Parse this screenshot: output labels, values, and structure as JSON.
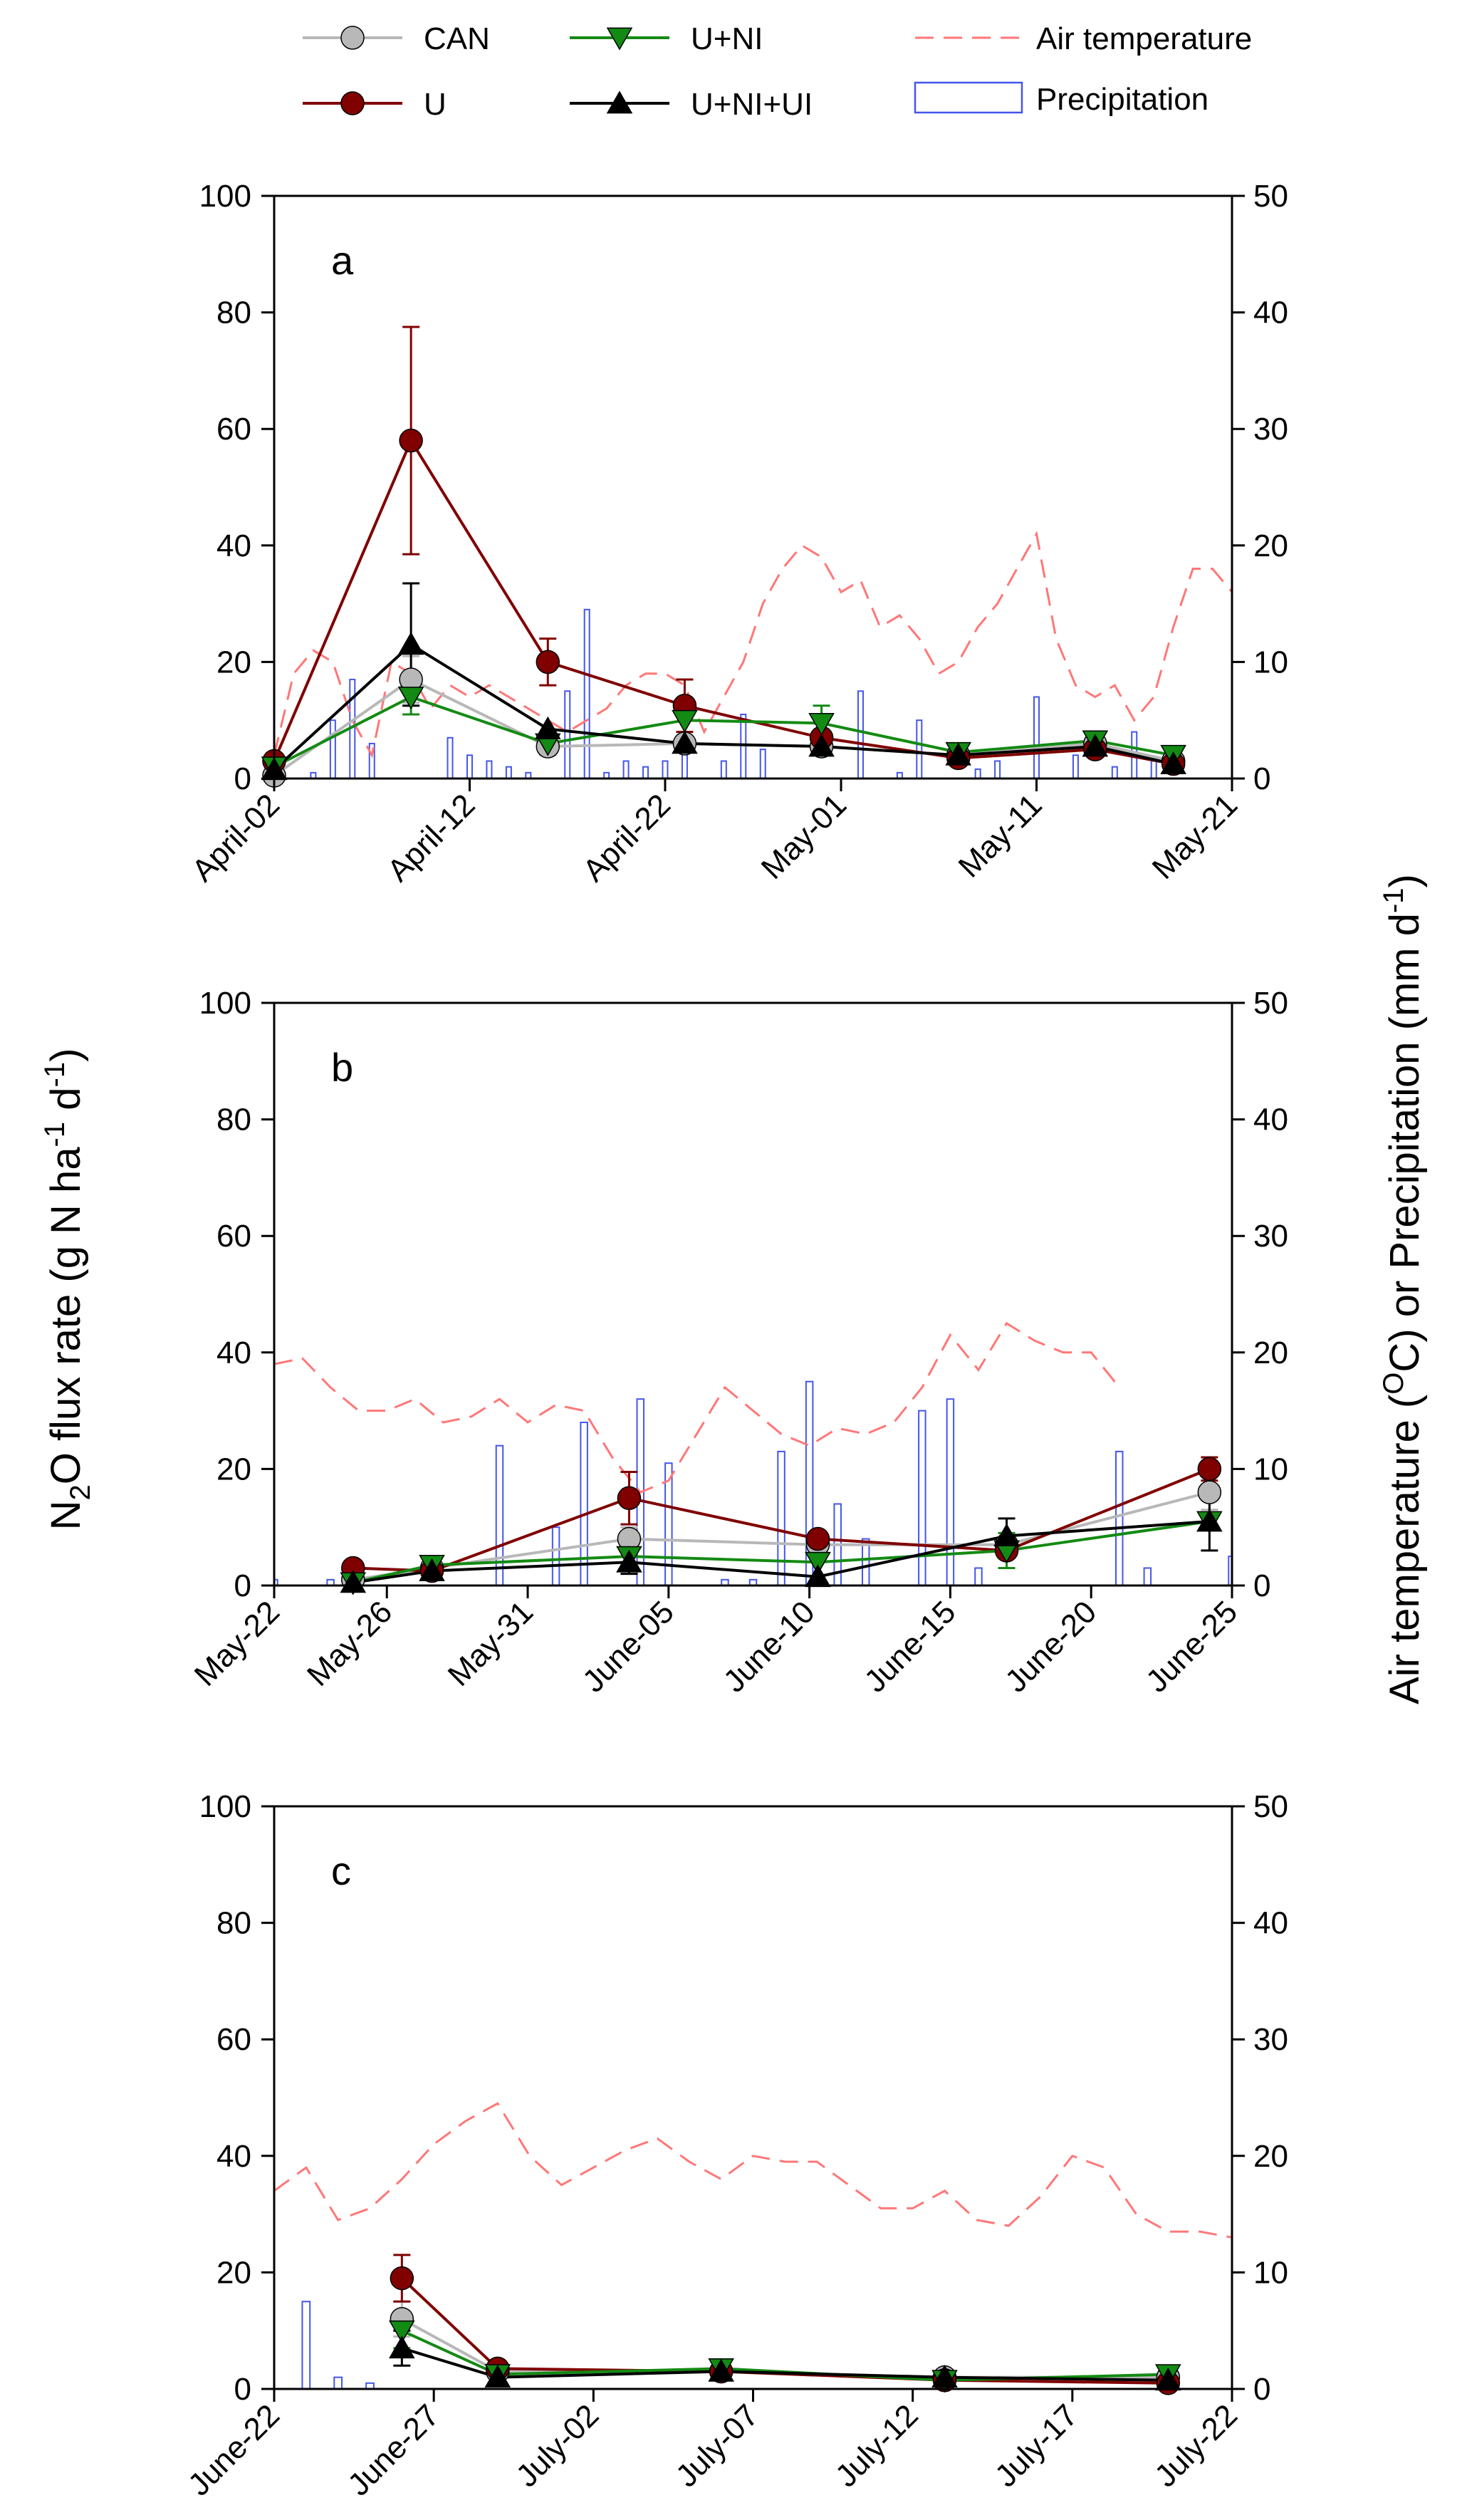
{
  "ylabel_left": {
    "pre": "N",
    "sub1": "2",
    "mid": "O flux rate (g N ha",
    "sup1": "-1",
    "mid2": " d",
    "sup2": "-1",
    "post": ")"
  },
  "ylabel_right": {
    "pre": "Air temperature (",
    "sup1": "O",
    "mid": "C) or Precipitation (mm d",
    "sup2": "-1",
    "post": ")"
  },
  "legend": [
    {
      "key": "CAN",
      "label": "CAN",
      "kind": "line-marker",
      "color": "#b8b8b8",
      "marker": "circle"
    },
    {
      "key": "U",
      "label": "U",
      "kind": "line-marker",
      "color": "#800000",
      "marker": "circle"
    },
    {
      "key": "UNI",
      "label": "U+NI",
      "kind": "line-marker",
      "color": "#138a13",
      "marker": "triangle-down"
    },
    {
      "key": "UNIUI",
      "label": "U+NI+UI",
      "kind": "line-marker",
      "color": "#000000",
      "marker": "triangle-up"
    },
    {
      "key": "air",
      "label": "Air temperature",
      "kind": "dashed",
      "color": "#ff7777"
    },
    {
      "key": "precip",
      "label": "Precipitation",
      "kind": "box",
      "color": "#4455ee"
    }
  ],
  "chart_data": [
    {
      "type": "line",
      "panel": "a",
      "x_range": [
        0,
        49
      ],
      "x_ticks": [
        {
          "x": 0,
          "label": "April-02"
        },
        {
          "x": 10,
          "label": "April-12"
        },
        {
          "x": 20,
          "label": "April-22"
        },
        {
          "x": 29,
          "label": "May-01"
        },
        {
          "x": 39,
          "label": "May-11"
        },
        {
          "x": 49,
          "label": "May-21"
        }
      ],
      "y_left": {
        "min": 0,
        "max": 100,
        "ticks": [
          0,
          20,
          40,
          60,
          80,
          100
        ]
      },
      "y_right": {
        "min": 0,
        "max": 50,
        "ticks": [
          0,
          10,
          20,
          30,
          40,
          50
        ]
      },
      "series": [
        {
          "key": "CAN",
          "x": [
            0,
            7,
            14,
            21,
            28,
            35,
            42,
            46
          ],
          "y": [
            0.5,
            17,
            5.5,
            6,
            5.5,
            4,
            6,
            3
          ],
          "err": [
            0,
            4,
            1.5,
            0,
            0,
            0,
            0,
            0
          ]
        },
        {
          "key": "U",
          "x": [
            0,
            7,
            14,
            21,
            28,
            35,
            42,
            46
          ],
          "y": [
            3,
            58,
            20,
            12.5,
            7,
            3.5,
            5,
            2.5
          ],
          "err": [
            1,
            19.5,
            4,
            4.5,
            0,
            0,
            0,
            0
          ]
        },
        {
          "key": "UNI",
          "x": [
            0,
            7,
            14,
            21,
            28,
            35,
            42,
            46
          ],
          "y": [
            2,
            14,
            6,
            10,
            9.5,
            4.5,
            6.5,
            4
          ],
          "err": [
            0,
            3,
            0,
            0,
            3,
            0,
            0,
            0
          ]
        },
        {
          "key": "UNIUI",
          "x": [
            0,
            7,
            14,
            21,
            28,
            35,
            42,
            46
          ],
          "y": [
            1.5,
            23,
            8.5,
            6,
            5.5,
            4,
            5.5,
            2.5
          ],
          "err": [
            0,
            10.5,
            0,
            0,
            0,
            0,
            0,
            0
          ]
        }
      ],
      "air_temperature": {
        "x": [
          0,
          1,
          2,
          3,
          4,
          5,
          6,
          7,
          8,
          9,
          10,
          11,
          12,
          13,
          14,
          15,
          16,
          17,
          18,
          19,
          20,
          21,
          22,
          23,
          24,
          25,
          26,
          27,
          28,
          29,
          30,
          31,
          32,
          33,
          34,
          35,
          36,
          37,
          38,
          39,
          40,
          41,
          42,
          43,
          44,
          45,
          46,
          47,
          48,
          49
        ],
        "y": [
          2,
          9,
          11,
          10,
          5,
          2,
          10,
          9,
          6,
          8,
          7,
          8,
          7,
          6,
          5,
          4,
          5,
          6,
          8,
          9,
          9,
          8,
          4,
          7,
          10,
          15,
          18,
          20,
          19,
          16,
          17,
          13,
          14,
          12,
          9,
          10,
          13,
          15,
          18,
          21,
          12,
          8,
          7,
          8,
          5,
          7,
          13,
          18,
          18,
          16
        ]
      },
      "precipitation": {
        "x": [
          2,
          3,
          4,
          5,
          9,
          10,
          11,
          12,
          13,
          15,
          16,
          17,
          18,
          19,
          20,
          21,
          23,
          24,
          25,
          30,
          32,
          33,
          36,
          37,
          39,
          41,
          43,
          44,
          45
        ],
        "y": [
          0.5,
          5,
          8.5,
          3,
          3.5,
          2,
          1.5,
          1,
          0.5,
          7.5,
          14.5,
          0.5,
          1.5,
          1,
          1.5,
          3.5,
          1.5,
          5.5,
          2.5,
          7.5,
          0.5,
          5,
          0.8,
          1.5,
          7,
          2,
          1,
          4,
          1.5
        ]
      },
      "label": "a"
    },
    {
      "type": "line",
      "panel": "b",
      "x_range": [
        0,
        34
      ],
      "x_ticks": [
        {
          "x": 0,
          "label": "May-22"
        },
        {
          "x": 4,
          "label": "May-26"
        },
        {
          "x": 9,
          "label": "May-31"
        },
        {
          "x": 14,
          "label": "June-05"
        },
        {
          "x": 19,
          "label": "June-10"
        },
        {
          "x": 24,
          "label": "June-15"
        },
        {
          "x": 29,
          "label": "June-20"
        },
        {
          "x": 34,
          "label": "June-25"
        }
      ],
      "y_left": {
        "min": 0,
        "max": 100,
        "ticks": [
          0,
          20,
          40,
          60,
          80,
          100
        ]
      },
      "y_right": {
        "min": 0,
        "max": 50,
        "ticks": [
          0,
          10,
          20,
          30,
          40,
          50
        ]
      },
      "series": [
        {
          "key": "CAN",
          "x": [
            2.8,
            5.6,
            12.6,
            19.3,
            26,
            33.2
          ],
          "y": [
            1,
            3,
            8,
            7,
            7,
            16
          ],
          "err": [
            0,
            0,
            2,
            0,
            0,
            3
          ]
        },
        {
          "key": "U",
          "x": [
            2.8,
            5.6,
            12.6,
            19.3,
            26,
            33.2
          ],
          "y": [
            3,
            2.5,
            15,
            8,
            6,
            20
          ],
          "err": [
            0,
            0,
            4.5,
            0,
            0,
            2
          ]
        },
        {
          "key": "UNI",
          "x": [
            2.8,
            5.6,
            12.6,
            19.3,
            26,
            33.2
          ],
          "y": [
            0.5,
            3.5,
            5,
            4,
            6,
            11
          ],
          "err": [
            0,
            0,
            0,
            0,
            3,
            0
          ]
        },
        {
          "key": "UNIUI",
          "x": [
            2.8,
            5.6,
            12.6,
            19.3,
            26,
            33.2
          ],
          "y": [
            0.5,
            2.5,
            4,
            1.5,
            8.5,
            11
          ],
          "err": [
            0,
            0,
            2,
            0,
            3,
            5
          ]
        }
      ],
      "air_temperature": {
        "x": [
          0,
          1,
          2,
          3,
          4,
          5,
          6,
          7,
          8,
          9,
          10,
          11,
          12,
          13,
          14,
          15,
          16,
          17,
          18,
          19,
          20,
          21,
          22,
          23,
          24,
          25,
          26,
          27,
          28,
          29,
          30
        ],
        "y": [
          19,
          19.5,
          17,
          15,
          15,
          16,
          14,
          14.5,
          16,
          14,
          15.5,
          15,
          11,
          8,
          9,
          13,
          17,
          15,
          13,
          12,
          13.5,
          13,
          14,
          17,
          21.5,
          18.5,
          22.5,
          21,
          20,
          20,
          17
        ]
      },
      "precipitation": {
        "x": [
          0,
          2,
          8,
          10,
          11,
          13,
          14,
          16,
          17,
          18,
          19,
          20,
          21,
          23,
          24,
          25,
          30,
          31,
          34
        ],
        "y": [
          0.5,
          0.5,
          12,
          5,
          14,
          16,
          10.5,
          0.5,
          0.5,
          11.5,
          17.5,
          7,
          4,
          15,
          16,
          1.5,
          11.5,
          1.5,
          2.5
        ]
      },
      "label": "b"
    },
    {
      "type": "line",
      "panel": "c",
      "x_range": [
        0,
        30
      ],
      "x_ticks": [
        {
          "x": 0,
          "label": "June-22"
        },
        {
          "x": 5,
          "label": "June-27"
        },
        {
          "x": 10,
          "label": "July-02"
        },
        {
          "x": 15,
          "label": "July-07"
        },
        {
          "x": 20,
          "label": "July-12"
        },
        {
          "x": 25,
          "label": "July-17"
        },
        {
          "x": 30,
          "label": "July-22"
        }
      ],
      "y_left": {
        "min": 0,
        "max": 100,
        "ticks": [
          0,
          20,
          40,
          60,
          80,
          100
        ]
      },
      "y_right": {
        "min": 0,
        "max": 50,
        "ticks": [
          0,
          10,
          20,
          30,
          40,
          50
        ]
      },
      "series": [
        {
          "key": "CAN",
          "x": [
            4,
            7,
            14,
            21,
            28
          ],
          "y": [
            12,
            3,
            3,
            2,
            2
          ],
          "err": [
            3,
            0,
            0,
            0,
            0
          ]
        },
        {
          "key": "U",
          "x": [
            4,
            7,
            14,
            21,
            28
          ],
          "y": [
            19,
            3.5,
            3,
            1.5,
            1
          ],
          "err": [
            4,
            0,
            0,
            0,
            0
          ]
        },
        {
          "key": "UNI",
          "x": [
            4,
            7,
            14,
            21,
            28
          ],
          "y": [
            10,
            2.5,
            3.5,
            1.5,
            2.5
          ],
          "err": [
            3,
            0,
            0,
            0,
            0
          ]
        },
        {
          "key": "UNIUI",
          "x": [
            4,
            7,
            14,
            21,
            28
          ],
          "y": [
            7,
            2,
            3,
            2,
            1.5
          ],
          "err": [
            3,
            0,
            0,
            0,
            0
          ]
        }
      ],
      "air_temperature": {
        "x": [
          0,
          1,
          2,
          3,
          4,
          5,
          6,
          7,
          8,
          9,
          10,
          11,
          12,
          13,
          14,
          15,
          16,
          17,
          18,
          19,
          20,
          21,
          22,
          23,
          24,
          25,
          26,
          27,
          28,
          29,
          30
        ],
        "y": [
          17,
          19,
          14.5,
          15.5,
          18,
          21,
          23,
          24.5,
          20,
          17.5,
          19,
          20.5,
          21.5,
          19.5,
          18,
          20,
          19.5,
          19.5,
          17.5,
          15.5,
          15.5,
          17,
          14.5,
          14,
          16.5,
          20,
          19,
          15,
          13.5,
          13.5,
          13
        ]
      },
      "precipitation": {
        "x": [
          1,
          2,
          3
        ],
        "y": [
          7.5,
          1,
          0.5
        ]
      },
      "label": "c"
    }
  ]
}
